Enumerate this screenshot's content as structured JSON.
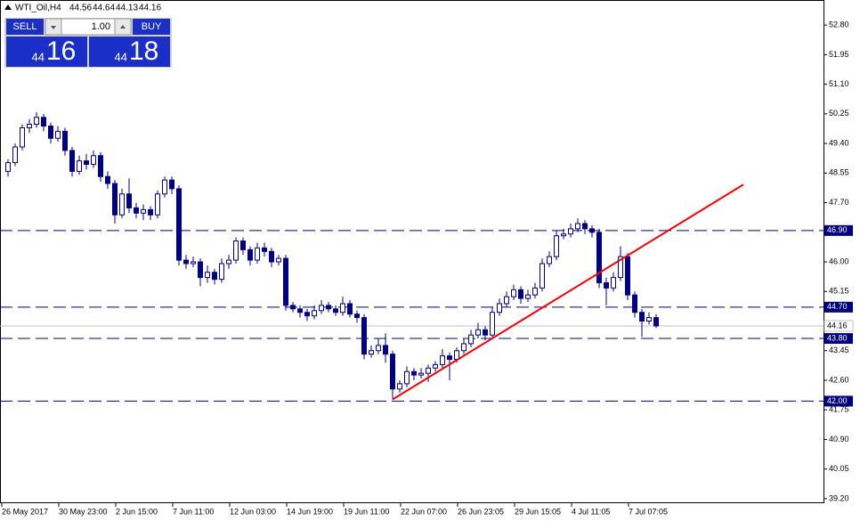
{
  "chart_data": {
    "type": "candlestick",
    "symbol": "WTI_Oil,H4",
    "quote": [
      44.56,
      44.64,
      44.13,
      44.16
    ],
    "categories": [
      "26 May 2017",
      null,
      null,
      null,
      null,
      null,
      null,
      null,
      "30 May 23:00",
      null,
      null,
      null,
      null,
      null,
      null,
      null,
      "2 Jun 15:00",
      null,
      null,
      null,
      null,
      null,
      null,
      null,
      "7 Jun 11:00",
      null,
      null,
      null,
      null,
      null,
      null,
      null,
      "12 Jun 03:00",
      null,
      null,
      null,
      null,
      null,
      null,
      null,
      "14 Jun 19:00",
      null,
      null,
      null,
      null,
      null,
      null,
      null,
      "19 Jun 11:00",
      null,
      null,
      null,
      null,
      null,
      null,
      null,
      "22 Jun 07:00",
      null,
      null,
      null,
      null,
      null,
      null,
      null,
      "26 Jun 23:05",
      null,
      null,
      null,
      null,
      null,
      null,
      null,
      "29 Jun 15:05",
      null,
      null,
      null,
      null,
      null,
      null,
      null,
      "4 Jul 11:05",
      null,
      null,
      null,
      null,
      null,
      null,
      null,
      "7 Jul 07:05",
      null,
      null,
      null
    ],
    "open": [
      48.6,
      48.85,
      49.3,
      49.85,
      49.95,
      50.15,
      49.9,
      49.55,
      49.75,
      49.2,
      48.6,
      48.9,
      48.8,
      49.05,
      48.45,
      48.25,
      47.35,
      47.95,
      47.55,
      47.4,
      47.5,
      47.35,
      47.95,
      48.35,
      48.1,
      46.05,
      45.95,
      46.0,
      45.55,
      45.7,
      45.5,
      45.95,
      46.05,
      46.6,
      46.35,
      46.05,
      46.4,
      46.3,
      46.0,
      46.1,
      44.75,
      44.65,
      44.55,
      44.45,
      44.6,
      44.75,
      44.65,
      44.55,
      44.8,
      44.5,
      44.4,
      43.35,
      43.45,
      43.6,
      43.35,
      42.35,
      42.5,
      42.85,
      42.75,
      42.8,
      42.95,
      43.05,
      43.3,
      43.2,
      43.45,
      43.65,
      43.9,
      44.05,
      43.9,
      44.55,
      44.8,
      45.0,
      45.2,
      44.95,
      45.05,
      45.25,
      45.95,
      46.15,
      46.75,
      46.8,
      46.95,
      47.1,
      46.95,
      46.85,
      45.4,
      45.25,
      45.55,
      46.15,
      45.05,
      44.55,
      44.3,
      44.4
    ],
    "high": [
      48.95,
      49.4,
      49.95,
      50.1,
      50.3,
      50.25,
      50.0,
      49.9,
      49.85,
      49.3,
      49.05,
      49.1,
      49.2,
      49.15,
      48.6,
      48.35,
      48.1,
      48.4,
      47.7,
      47.65,
      47.6,
      48.05,
      48.45,
      48.45,
      48.2,
      46.2,
      46.15,
      46.1,
      45.9,
      45.8,
      46.1,
      46.2,
      46.7,
      46.7,
      46.45,
      46.55,
      46.55,
      46.4,
      46.2,
      46.2,
      44.85,
      44.75,
      44.65,
      44.75,
      44.9,
      44.85,
      44.75,
      45.0,
      44.9,
      44.6,
      44.5,
      43.6,
      43.8,
      43.95,
      43.45,
      42.6,
      43.0,
      42.95,
      42.95,
      43.05,
      43.15,
      43.5,
      43.4,
      43.55,
      43.8,
      44.05,
      44.25,
      44.15,
      44.7,
      44.95,
      45.15,
      45.35,
      45.3,
      45.2,
      45.4,
      46.1,
      46.3,
      46.9,
      46.95,
      47.1,
      47.25,
      47.2,
      47.05,
      46.95,
      45.55,
      45.7,
      46.45,
      46.25,
      45.15,
      44.65,
      44.55,
      44.5
    ],
    "low": [
      48.45,
      48.75,
      49.2,
      49.7,
      49.85,
      49.75,
      49.4,
      49.45,
      49.05,
      48.45,
      48.5,
      48.65,
      48.7,
      48.3,
      48.1,
      47.1,
      47.25,
      47.4,
      47.25,
      47.2,
      47.2,
      47.25,
      47.85,
      47.95,
      45.9,
      45.8,
      45.85,
      45.3,
      45.4,
      45.35,
      45.4,
      45.8,
      45.95,
      46.2,
      45.9,
      45.95,
      46.15,
      45.85,
      45.9,
      44.6,
      44.55,
      44.4,
      44.3,
      44.35,
      44.5,
      44.55,
      44.45,
      44.45,
      44.4,
      44.25,
      43.2,
      43.25,
      43.35,
      43.1,
      42.05,
      42.25,
      42.4,
      42.6,
      42.65,
      42.55,
      42.85,
      42.95,
      42.6,
      43.1,
      43.35,
      43.55,
      43.8,
      43.75,
      43.8,
      44.45,
      44.7,
      44.9,
      44.8,
      44.85,
      44.95,
      45.15,
      45.85,
      46.05,
      46.65,
      46.7,
      46.85,
      46.8,
      46.7,
      45.25,
      44.75,
      45.15,
      45.45,
      44.9,
      44.4,
      43.85,
      44.2,
      44.1
    ],
    "close": [
      48.85,
      49.3,
      49.85,
      49.95,
      50.15,
      49.9,
      49.55,
      49.75,
      49.2,
      48.6,
      48.9,
      48.8,
      49.05,
      48.45,
      48.25,
      47.35,
      47.95,
      47.55,
      47.4,
      47.5,
      47.35,
      47.95,
      48.35,
      48.1,
      46.05,
      45.95,
      46.0,
      45.55,
      45.7,
      45.5,
      45.95,
      46.05,
      46.6,
      46.35,
      46.05,
      46.4,
      46.3,
      46.0,
      46.1,
      44.75,
      44.65,
      44.55,
      44.45,
      44.6,
      44.75,
      44.65,
      44.55,
      44.8,
      44.5,
      44.4,
      43.35,
      43.45,
      43.6,
      43.35,
      42.35,
      42.5,
      42.85,
      42.75,
      42.8,
      42.95,
      43.05,
      43.3,
      43.2,
      43.45,
      43.65,
      43.9,
      44.05,
      43.9,
      44.55,
      44.8,
      45.0,
      45.2,
      44.95,
      45.05,
      45.25,
      45.95,
      46.15,
      46.75,
      46.8,
      46.95,
      47.1,
      46.95,
      46.85,
      45.4,
      45.25,
      45.55,
      46.15,
      45.05,
      44.55,
      44.3,
      44.4,
      44.16
    ],
    "up_color": "#ffffff",
    "down_color": "#000080",
    "outline_color": "#000080",
    "ylim": [
      39.07,
      53.52
    ],
    "yticks": [
      {
        "value": 52.8,
        "label": "52.80"
      },
      {
        "value": 51.95,
        "label": "51.95"
      },
      {
        "value": 51.1,
        "label": "51.10"
      },
      {
        "value": 50.25,
        "label": "50.25"
      },
      {
        "value": 49.4,
        "label": "49.40"
      },
      {
        "value": 48.55,
        "label": "48.55"
      },
      {
        "value": 47.7,
        "label": "47.70"
      },
      {
        "value": 46.0,
        "label": "46.00"
      },
      {
        "value": 45.15,
        "label": "45.15"
      },
      {
        "value": 43.45,
        "label": "43.45"
      },
      {
        "value": 42.6,
        "label": "42.60"
      },
      {
        "value": 41.75,
        "label": "41.75"
      },
      {
        "value": 40.9,
        "label": "40.90"
      },
      {
        "value": 40.05,
        "label": "40.05"
      },
      {
        "value": 39.2,
        "label": "39.20"
      }
    ],
    "levels": [
      {
        "value": 46.9,
        "label": "46.90"
      },
      {
        "value": 44.7,
        "label": "44.70"
      },
      {
        "value": 43.8,
        "label": "43.80"
      },
      {
        "value": 42.0,
        "label": "42.00"
      }
    ],
    "level_color": "#000080",
    "price_line": {
      "value": 44.16,
      "label": "44.16"
    },
    "trendline": {
      "color": "#ff0000",
      "x": [
        54,
        103.25
      ],
      "y": [
        42.05,
        48.22
      ]
    }
  },
  "trade_panel": {
    "sell": "SELL",
    "buy": "BUY",
    "lot": "1.00",
    "sell_big": "44",
    "sell_pips": "16",
    "buy_big": "44",
    "buy_pips": "18"
  }
}
